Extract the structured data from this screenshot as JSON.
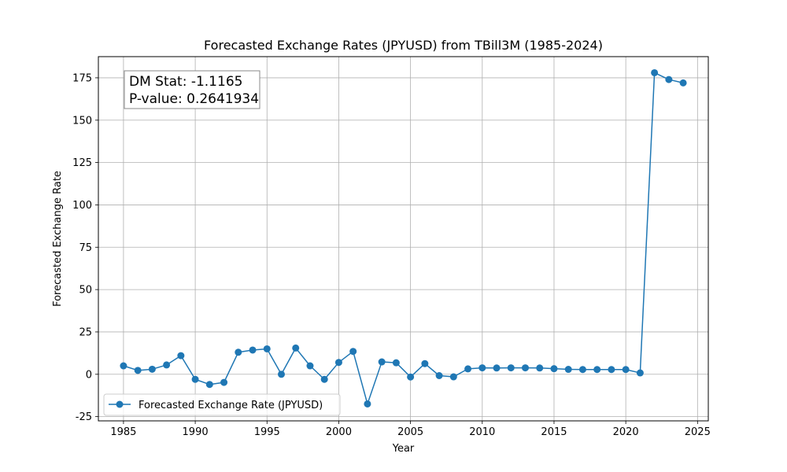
{
  "chart_data": {
    "type": "line",
    "title": "Forecasted Exchange Rates (JPYUSD) from TBill3M (1985-2024)",
    "xlabel": "Year",
    "ylabel": "Forecasted Exchange Rate",
    "xlim": [
      1983.25,
      2025.75
    ],
    "ylim": [
      -27.5,
      187.5
    ],
    "xticks": [
      1985,
      1990,
      1995,
      2000,
      2005,
      2010,
      2015,
      2020,
      2025
    ],
    "yticks": [
      -25,
      0,
      25,
      50,
      75,
      100,
      125,
      150,
      175
    ],
    "grid": true,
    "legend_position": "lower-left",
    "annotation": {
      "dm_stat": "DM Stat: -1.1165",
      "p_value": "P-value: 0.2641934"
    },
    "series": [
      {
        "name": "Forecasted Exchange Rate (JPYUSD)",
        "color": "#1f77b4",
        "x": [
          1985,
          1986,
          1987,
          1988,
          1989,
          1990,
          1991,
          1992,
          1993,
          1994,
          1995,
          1996,
          1997,
          1998,
          1999,
          2000,
          2001,
          2002,
          2003,
          2004,
          2005,
          2006,
          2007,
          2008,
          2009,
          2010,
          2011,
          2012,
          2013,
          2014,
          2015,
          2016,
          2017,
          2018,
          2019,
          2020,
          2021,
          2022,
          2023,
          2024
        ],
        "y": [
          5,
          2.3,
          3,
          5.5,
          11,
          -3,
          -6,
          -4.8,
          13,
          14.3,
          15,
          0,
          15.5,
          5,
          -3,
          7,
          13.5,
          -17.5,
          7.3,
          6.8,
          -1.6,
          6.3,
          -0.8,
          -1.5,
          3.2,
          3.8,
          3.7,
          3.8,
          3.8,
          3.7,
          3.3,
          2.9,
          2.8,
          2.8,
          2.8,
          2.8,
          0.8,
          178,
          174,
          172
        ]
      }
    ]
  }
}
